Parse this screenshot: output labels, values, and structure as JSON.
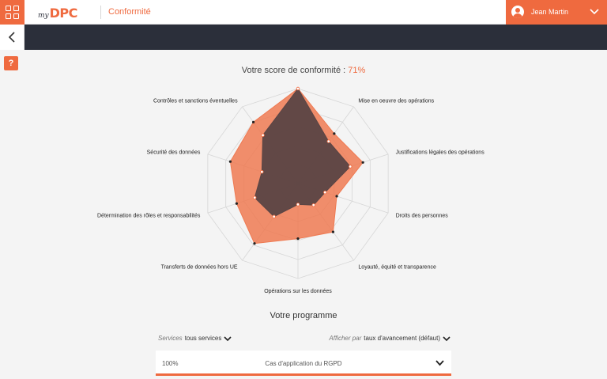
{
  "header": {
    "logo_prefix": "my",
    "logo_main": "DPC",
    "section": "Conformité",
    "user_name": "Jean Martin"
  },
  "help_label": "?",
  "score": {
    "label": "Votre score de conformité :",
    "value": "71%"
  },
  "chart_data": {
    "type": "radar",
    "axes": [
      "Cas d'application du RGPD",
      "Mise en oeuvre des opérations",
      "Justifications légales des opérations",
      "Droits des personnes",
      "Loyauté, équité et transparence",
      "Opérations sur les données",
      "Transferts de données hors UE",
      "Détermination des rôles et responsabilités",
      "Sécurité des données",
      "Contrôles et sanctions éventuelles"
    ],
    "rlim": [
      0,
      100
    ],
    "series": [
      {
        "values": [
          100,
          65,
          72,
          43,
          63,
          58,
          78,
          68,
          75,
          80
        ],
        "color": "#ef7a52"
      },
      {
        "values": [
          100,
          55,
          58,
          30,
          28,
          22,
          43,
          48,
          40,
          63
        ],
        "color": "#5a4545"
      }
    ]
  },
  "program": {
    "title": "Votre programme",
    "filter_services_prefix": "Services",
    "filter_services_value": "tous services",
    "filter_sort_prefix": "Afficher par",
    "filter_sort_value": "taux d'avancement (défaut)",
    "rows": [
      {
        "percent": "100%",
        "label": "Cas d'application du RGPD"
      }
    ]
  }
}
